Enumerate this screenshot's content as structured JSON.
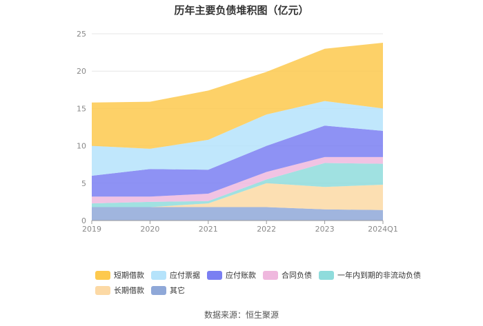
{
  "title": "历年主要负债堆积图（亿元）",
  "source": "数据来源：恒生聚源",
  "chart_data": {
    "type": "area",
    "stacked": true,
    "categories": [
      "2019",
      "2020",
      "2021",
      "2022",
      "2023",
      "2024Q1"
    ],
    "ylim": [
      0,
      25
    ],
    "yticks": [
      0,
      5,
      10,
      15,
      20,
      25
    ],
    "grid": true,
    "legend_position": "bottom",
    "series": [
      {
        "name": "其它",
        "color": "#8fa8d8",
        "values": [
          1.8,
          1.8,
          1.8,
          1.8,
          1.5,
          1.4
        ]
      },
      {
        "name": "长期借款",
        "color": "#fcd9a5",
        "values": [
          0.0,
          0.0,
          0.5,
          3.2,
          3.0,
          3.4
        ]
      },
      {
        "name": "一年内到期的非流动负债",
        "color": "#8fdcdc",
        "values": [
          0.5,
          0.7,
          0.3,
          0.5,
          3.2,
          2.8
        ]
      },
      {
        "name": "合同负债",
        "color": "#efb8de",
        "values": [
          0.9,
          0.7,
          1.0,
          1.0,
          0.8,
          0.9
        ]
      },
      {
        "name": "应付账款",
        "color": "#7a7ff2",
        "values": [
          2.8,
          3.7,
          3.2,
          3.5,
          4.2,
          3.5
        ]
      },
      {
        "name": "应付票据",
        "color": "#b5e3fb",
        "values": [
          4.0,
          2.7,
          4.0,
          4.2,
          3.3,
          3.0
        ]
      },
      {
        "name": "短期借款",
        "color": "#fdc94e",
        "values": [
          5.8,
          6.3,
          6.6,
          5.7,
          7.0,
          8.8
        ]
      }
    ]
  },
  "legend": {
    "rows": [
      [
        "短期借款",
        "应付票据",
        "应付账款",
        "合同负债",
        "一年内到期的非流动负债"
      ],
      [
        "长期借款",
        "其它"
      ]
    ]
  }
}
